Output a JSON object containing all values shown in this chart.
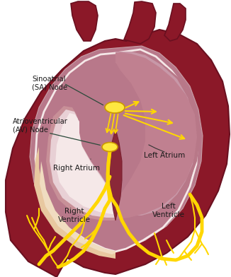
{
  "background_color": "#ffffff",
  "labels": {
    "sinoatrial": "Sinoatrial\n(SA) Node",
    "av_node": "Atrioventricular\n(AV) Node",
    "right_atrium": "Right Atrium",
    "left_atrium": "Left Atrium",
    "right_ventricle": "Right\nVentricle",
    "left_ventricle": "Left\nVentricle"
  },
  "colors": {
    "heart_outer": "#8B1828",
    "heart_outer_edge": "#6a1020",
    "heart_inner_mauve": "#b8788a",
    "rv_cream": "#e8c8a0",
    "rv_inner": "#f0dcc0",
    "ra_pink": "#c89098",
    "ra_inner_light": "#e8d0d5",
    "la_pink": "#b87888",
    "lv_pink": "#c08090",
    "septum_dark": "#8a2838",
    "septum_wall": "#7a2030",
    "conduction": "#FFD700",
    "node_fill": "#FFE840",
    "node_edge": "#CC9900",
    "label_color": "#1a1a1a",
    "pointer_color": "#2a4a3a",
    "white_highlight": "#f5e8e8"
  }
}
